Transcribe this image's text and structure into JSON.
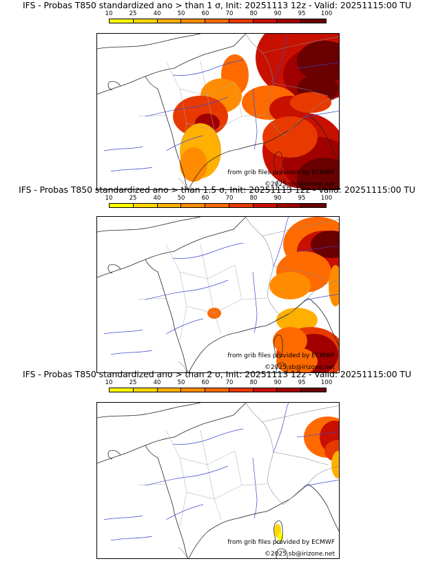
{
  "colorbar": {
    "ticks": [
      "10",
      "25",
      "40",
      "50",
      "60",
      "70",
      "80",
      "90",
      "95",
      "100"
    ],
    "colors": [
      "#ffff00",
      "#ffd700",
      "#ffb000",
      "#ff8c00",
      "#ff6a00",
      "#e83a00",
      "#c81000",
      "#a00000",
      "#6a0000"
    ]
  },
  "panels": [
    {
      "title": "IFS - Probas T850  standardized ano > than 1 σ, Init: 20251113 12z - Valid: 20251115:00 TU",
      "source_text": "from grib files provided by ECMWF",
      "copyright": "©2025 sb@irizone.net"
    },
    {
      "title": "IFS - Probas T850  standardized ano > than 1.5 σ, Init: 20251113 12z - Valid: 20251115:00 TU",
      "source_text": "from grib files provided by ECMWF",
      "copyright": "©2025 sb@irizone.net"
    },
    {
      "title": "IFS - Probas T850  standardized ano > than 2 σ, Init: 20251113 12z - Valid: 20251115:00 TU",
      "source_text": "from grib files provided by ECMWF",
      "copyright": "©2025 sb@irizone.net"
    }
  ]
}
